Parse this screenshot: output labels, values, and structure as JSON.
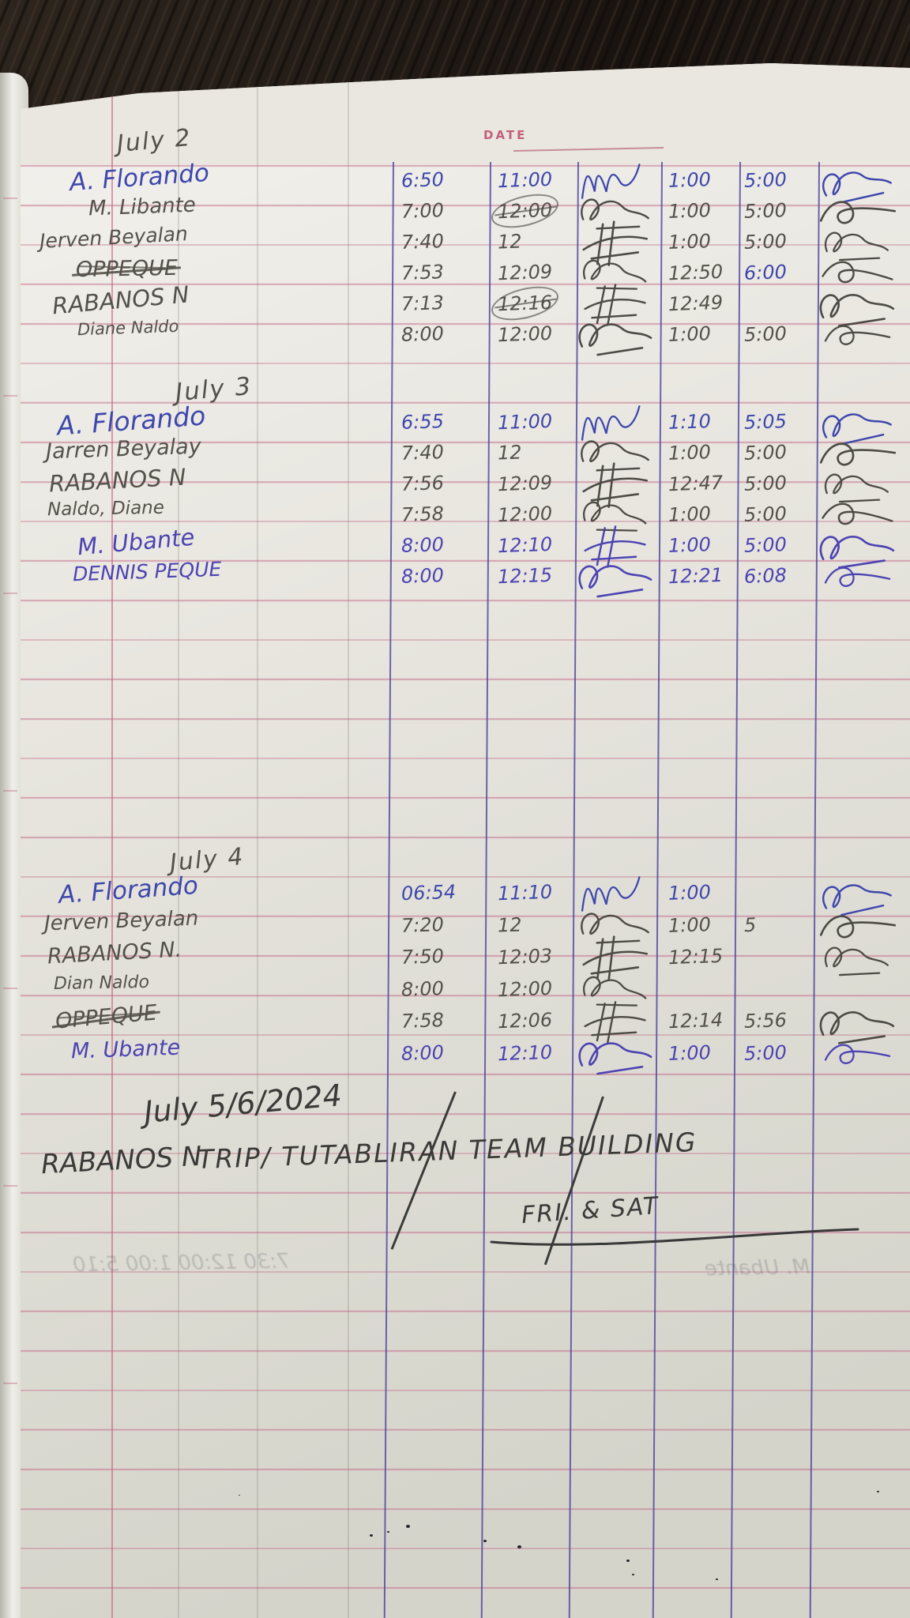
{
  "notebook_page": {
    "date_label": "DATE",
    "sections": [
      {
        "title": "July 2",
        "rows": [
          {
            "name": "A. Florando",
            "ink": "blue",
            "times": [
              "6:50",
              "11:00",
              "1:00",
              "5:00"
            ],
            "sig_end": true
          },
          {
            "name": "M. Libante",
            "ink": "pencil",
            "times": [
              "7:00",
              "12:00",
              "1:00",
              "5:00"
            ],
            "scratch": [
              1
            ],
            "sig_end": true
          },
          {
            "name": "Jerven Beyalan",
            "ink": "pencil",
            "times": [
              "7:40",
              "12",
              "1:00",
              "5:00"
            ],
            "sig_end": true
          },
          {
            "name": "OPPEQUE",
            "ink": "pencil",
            "struck": true,
            "times": [
              "7:53",
              "12:09",
              "12:50",
              "6:00"
            ],
            "overrides": {
              "3": "blue"
            },
            "sig_end": true
          },
          {
            "name": "RABANOS N",
            "ink": "pencil",
            "times": [
              "7:13",
              "12:16",
              "12:49",
              ""
            ],
            "scratch": [
              1
            ],
            "sig_end": true
          },
          {
            "name": "Diane Naldo",
            "ink": "pencil",
            "times": [
              "8:00",
              "12:00",
              "1:00",
              "5:00"
            ],
            "sig_end": true
          }
        ]
      },
      {
        "title": "July 3",
        "rows": [
          {
            "name": "A. Florando",
            "ink": "blue",
            "times": [
              "6:55",
              "11:00",
              "1:10",
              "5:05"
            ],
            "sig_end": true
          },
          {
            "name": "Jarren Beyalay",
            "ink": "pencil",
            "times": [
              "7:40",
              "12",
              "1:00",
              "5:00"
            ],
            "sig_end": true
          },
          {
            "name": "RABANOS N",
            "ink": "pencil",
            "times": [
              "7:56",
              "12:09",
              "12:47",
              "5:00"
            ],
            "sig_end": true
          },
          {
            "name": "Naldo, Diane",
            "ink": "pencil",
            "times": [
              "7:58",
              "12:00",
              "1:00",
              "5:00"
            ],
            "sig_end": true
          },
          {
            "name": "M. Ubante",
            "ink": "violet",
            "times": [
              "8:00",
              "12:10",
              "1:00",
              "5:00"
            ],
            "sig_end": true
          },
          {
            "name": "DENNIS PEQUE",
            "ink": "violet",
            "times": [
              "8:00",
              "12:15",
              "12:21",
              "6:08"
            ],
            "sig_end": true
          }
        ]
      },
      {
        "title": "July 4",
        "rows": [
          {
            "name": "A. Florando",
            "ink": "blue",
            "times": [
              "06:54",
              "11:10",
              "1:00",
              ""
            ],
            "sig_end": true
          },
          {
            "name": "Jerven Beyalan",
            "ink": "pencil",
            "times": [
              "7:20",
              "12",
              "1:00",
              "5"
            ],
            "sig_end": true
          },
          {
            "name": "RABANOS N.",
            "ink": "pencil",
            "times": [
              "7:50",
              "12:03",
              "12:15",
              ""
            ],
            "sig_end": true
          },
          {
            "name": "Dian Naldo",
            "ink": "pencil",
            "times": [
              "8:00",
              "12:00",
              "",
              ""
            ],
            "sig_end": false
          },
          {
            "name": "OPPEQUE",
            "ink": "pencil",
            "struck": true,
            "times": [
              "7:58",
              "12:06",
              "12:14",
              "5:56"
            ],
            "sig_end": true
          },
          {
            "name": "M. Ubante",
            "ink": "violet",
            "times": [
              "8:00",
              "12:10",
              "1:00",
              "5:00"
            ],
            "sig_end": true
          }
        ]
      }
    ],
    "footer": {
      "date_title": "July 5/6/2024",
      "author": "RABANOS N",
      "note": "TRIP/ TUTABLIRAN TEAM BUILDING",
      "days": "FRI. & SAT"
    },
    "ghost_bleedthrough": {
      "left": "7:30 12:00 1:00 5:10",
      "right": "M. Ubante"
    },
    "colors": {
      "pencil": "#54514a",
      "blue_ink": "#3e47ac",
      "violet_ink": "#4c43b2",
      "rule_pink": "#c76b8a",
      "rule_blue": "#4f46a0",
      "paper": "#e8e6df",
      "wood": "#241d18"
    }
  }
}
